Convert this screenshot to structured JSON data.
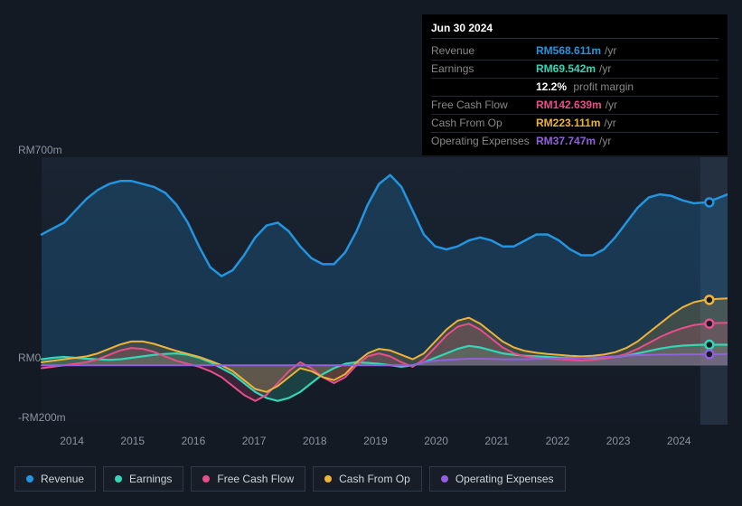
{
  "tooltip": {
    "title": "Jun 30 2024",
    "rows": [
      {
        "label": "Revenue",
        "value": "RM568.611m",
        "unit": "/yr",
        "color": "#2394df"
      },
      {
        "label": "Earnings",
        "value": "RM69.542m",
        "unit": "/yr",
        "color": "#33d6b6",
        "sub_value": "12.2%",
        "sub_label": "profit margin"
      },
      {
        "label": "Free Cash Flow",
        "value": "RM142.639m",
        "unit": "/yr",
        "color": "#e84f8a"
      },
      {
        "label": "Cash From Op",
        "value": "RM223.111m",
        "unit": "/yr",
        "color": "#eeb33a"
      },
      {
        "label": "Operating Expenses",
        "value": "RM37.747m",
        "unit": "/yr",
        "color": "#9260dd"
      }
    ]
  },
  "chart": {
    "type": "area-line",
    "background": "#131a24",
    "plot_bg_gradient_top": "#1a2432",
    "plot_bg_gradient_bottom": "#141b26",
    "cursor_band_bg": "#242f3f",
    "baseline_color": "#3a4552",
    "text_color": "#8a94a0",
    "y_axis": {
      "min": -200,
      "max": 700,
      "ticks": [
        {
          "v": 700,
          "label": "RM700m"
        },
        {
          "v": 0,
          "label": "RM0"
        },
        {
          "v": -200,
          "label": "-RM200m"
        }
      ]
    },
    "x_axis": {
      "start": 2013.5,
      "end": 2024.8,
      "cursor": 2024.5,
      "ticks": [
        2014,
        2015,
        2016,
        2017,
        2018,
        2019,
        2020,
        2021,
        2022,
        2023,
        2024
      ]
    },
    "series": [
      {
        "id": "revenue",
        "name": "Revenue",
        "color": "#2394df",
        "fill_opacity": 0.2,
        "line_width": 2.5,
        "values": [
          440,
          460,
          480,
          520,
          560,
          590,
          610,
          620,
          620,
          610,
          600,
          580,
          540,
          480,
          400,
          330,
          300,
          320,
          370,
          430,
          470,
          480,
          450,
          400,
          360,
          340,
          340,
          380,
          450,
          540,
          610,
          640,
          600,
          520,
          440,
          400,
          390,
          400,
          420,
          430,
          420,
          400,
          400,
          420,
          440,
          440,
          420,
          390,
          370,
          370,
          390,
          430,
          480,
          530,
          565,
          575,
          570,
          555,
          545,
          548,
          560,
          575
        ],
        "end_marker": true
      },
      {
        "id": "earnings",
        "name": "Earnings",
        "color": "#33d6b6",
        "fill_opacity": 0.2,
        "line_width": 2.2,
        "values": [
          20,
          25,
          28,
          25,
          22,
          20,
          18,
          20,
          25,
          30,
          35,
          38,
          40,
          35,
          25,
          10,
          -10,
          -30,
          -60,
          -90,
          -110,
          -120,
          -110,
          -90,
          -60,
          -30,
          -10,
          5,
          10,
          8,
          5,
          0,
          -5,
          0,
          10,
          25,
          40,
          55,
          65,
          60,
          50,
          40,
          35,
          32,
          30,
          28,
          26,
          25,
          25,
          25,
          26,
          28,
          32,
          40,
          48,
          56,
          62,
          66,
          68,
          69,
          69,
          69
        ],
        "end_marker": true
      },
      {
        "id": "fcf",
        "name": "Free Cash Flow",
        "color": "#e84f8a",
        "fill_opacity": 0.18,
        "line_width": 2.0,
        "values": [
          -10,
          -5,
          0,
          5,
          10,
          20,
          35,
          50,
          58,
          55,
          45,
          30,
          15,
          5,
          -5,
          -20,
          -40,
          -70,
          -100,
          -120,
          -100,
          -60,
          -20,
          10,
          -10,
          -40,
          -60,
          -40,
          0,
          30,
          40,
          30,
          10,
          -5,
          20,
          60,
          100,
          130,
          140,
          120,
          90,
          60,
          40,
          30,
          25,
          22,
          20,
          18,
          16,
          18,
          22,
          28,
          38,
          55,
          75,
          95,
          112,
          125,
          135,
          140,
          142,
          143
        ],
        "end_marker": true
      },
      {
        "id": "cfo",
        "name": "Cash From Op",
        "color": "#eeb33a",
        "fill_opacity": 0.18,
        "line_width": 2.0,
        "values": [
          10,
          15,
          20,
          25,
          30,
          40,
          55,
          70,
          80,
          80,
          72,
          60,
          48,
          38,
          28,
          15,
          0,
          -20,
          -50,
          -80,
          -90,
          -70,
          -40,
          -10,
          -20,
          -40,
          -50,
          -30,
          10,
          40,
          55,
          50,
          35,
          20,
          40,
          80,
          120,
          150,
          160,
          140,
          110,
          80,
          60,
          48,
          42,
          38,
          35,
          32,
          30,
          32,
          36,
          44,
          58,
          80,
          110,
          140,
          170,
          195,
          212,
          220,
          223,
          225
        ],
        "end_marker": true
      },
      {
        "id": "opex",
        "name": "Operating Expenses",
        "color": "#9260dd",
        "fill_opacity": 0.18,
        "line_width": 2.0,
        "values": [
          0,
          0,
          0,
          0,
          0,
          0,
          0,
          0,
          0,
          0,
          0,
          0,
          0,
          0,
          0,
          0,
          0,
          0,
          0,
          0,
          0,
          0,
          0,
          0,
          0,
          0,
          0,
          0,
          0,
          0,
          0,
          0,
          0,
          0,
          10,
          15,
          18,
          20,
          22,
          22,
          21,
          20,
          20,
          20,
          21,
          22,
          23,
          24,
          25,
          26,
          28,
          30,
          32,
          34,
          35,
          36,
          36,
          37,
          37,
          37,
          37,
          38
        ],
        "end_marker": true
      }
    ]
  },
  "legend": [
    {
      "id": "revenue",
      "label": "Revenue",
      "color": "#2394df"
    },
    {
      "id": "earnings",
      "label": "Earnings",
      "color": "#33d6b6"
    },
    {
      "id": "fcf",
      "label": "Free Cash Flow",
      "color": "#e84f8a"
    },
    {
      "id": "cfo",
      "label": "Cash From Op",
      "color": "#eeb33a"
    },
    {
      "id": "opex",
      "label": "Operating Expenses",
      "color": "#9260dd"
    }
  ]
}
